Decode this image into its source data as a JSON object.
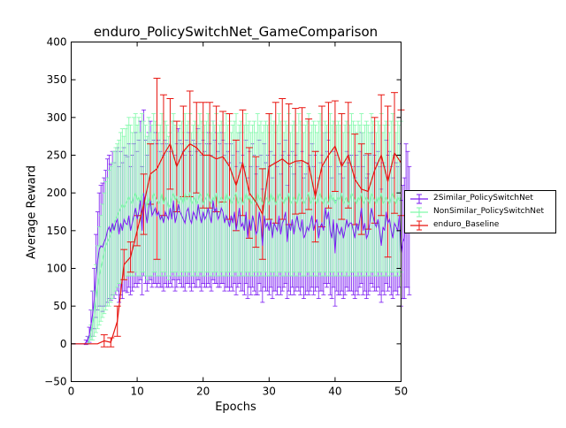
{
  "chart_data": {
    "type": "line",
    "title": "enduro_PolicySwitchNet_GameComparison",
    "xlabel": "Epochs",
    "ylabel": "Average Reward",
    "xlim": [
      0,
      50
    ],
    "ylim": [
      -50,
      400
    ],
    "xticks": [
      "0",
      "10",
      "20",
      "30",
      "40",
      "50"
    ],
    "yticks": [
      "−50",
      "0",
      "50",
      "100",
      "150",
      "200",
      "250",
      "300",
      "350",
      "400"
    ],
    "legend_position": "right, outside axes",
    "grid": false,
    "error_bars": true,
    "series": [
      {
        "name": "2Similar_PolicySwitchNet",
        "color": "#7a19f2",
        "x_start": 0,
        "x_step": 0.25,
        "values": [
          0,
          0,
          0,
          0,
          0,
          0,
          0,
          0,
          0,
          2,
          5,
          12,
          25,
          40,
          60,
          90,
          110,
          125,
          130,
          128,
          135,
          140,
          150,
          155,
          148,
          160,
          150,
          160,
          165,
          145,
          160,
          150,
          165,
          160,
          158,
          170,
          150,
          160,
          170,
          180,
          165,
          175,
          190,
          150,
          200,
          175,
          160,
          180,
          190,
          170,
          175,
          180,
          170,
          175,
          165,
          170,
          160,
          175,
          170,
          165,
          180,
          165,
          190,
          160,
          170,
          185,
          175,
          170,
          165,
          160,
          175,
          180,
          165,
          160,
          175,
          170,
          165,
          185,
          170,
          160,
          175,
          165,
          170,
          180,
          170,
          160,
          190,
          175,
          180,
          165,
          170,
          180,
          175,
          160,
          170,
          165,
          155,
          170,
          160,
          175,
          150,
          165,
          180,
          155,
          160,
          150,
          175,
          140,
          165,
          150,
          170,
          160,
          145,
          150,
          175,
          160,
          130,
          170,
          155,
          160,
          150,
          165,
          140,
          160,
          155,
          150,
          170,
          145,
          160,
          165,
          175,
          135,
          160,
          150,
          165,
          145,
          160,
          170,
          155,
          150,
          165,
          140,
          145,
          155,
          150,
          160,
          170,
          150,
          160,
          165,
          140,
          155,
          160,
          150,
          180,
          165,
          175,
          150,
          140,
          165,
          120,
          160,
          150,
          145,
          155,
          140,
          150,
          165,
          155,
          160,
          160,
          150,
          140,
          160,
          150,
          165,
          180,
          150,
          160,
          140,
          145,
          160,
          180,
          170,
          160,
          155,
          165,
          150,
          130,
          155,
          150,
          175,
          160,
          165,
          150,
          140,
          160,
          155,
          150,
          170,
          120,
          135,
          140,
          170,
          165,
          150
        ],
        "error": [
          0,
          0,
          0,
          0,
          0,
          0,
          0,
          0,
          0,
          3,
          5,
          10,
          20,
          30,
          40,
          55,
          65,
          75,
          80,
          85,
          85,
          90,
          95,
          95,
          90,
          95,
          90,
          95,
          95,
          90,
          95,
          90,
          95,
          90,
          90,
          95,
          85,
          90,
          95,
          100,
          90,
          95,
          105,
          85,
          110,
          95,
          90,
          100,
          105,
          95,
          95,
          100,
          95,
          95,
          90,
          95,
          90,
          95,
          95,
          90,
          100,
          90,
          105,
          90,
          95,
          100,
          95,
          95,
          90,
          90,
          95,
          100,
          90,
          90,
          95,
          95,
          90,
          100,
          95,
          90,
          95,
          90,
          95,
          100,
          95,
          90,
          105,
          95,
          100,
          90,
          95,
          100,
          95,
          90,
          95,
          90,
          85,
          95,
          90,
          95,
          85,
          90,
          100,
          85,
          90,
          85,
          95,
          80,
          90,
          85,
          95,
          90,
          80,
          85,
          95,
          90,
          75,
          95,
          85,
          90,
          85,
          90,
          80,
          90,
          85,
          85,
          95,
          80,
          90,
          90,
          95,
          75,
          90,
          85,
          90,
          80,
          90,
          95,
          85,
          85,
          90,
          80,
          80,
          85,
          85,
          90,
          95,
          85,
          90,
          90,
          80,
          85,
          90,
          85,
          100,
          90,
          95,
          85,
          80,
          90,
          70,
          90,
          85,
          80,
          85,
          80,
          85,
          90,
          85,
          90,
          90,
          85,
          80,
          90,
          85,
          90,
          100,
          85,
          90,
          80,
          80,
          90,
          100,
          95,
          90,
          85,
          90,
          85,
          75,
          85,
          85,
          95,
          90,
          90,
          85,
          80,
          90,
          85,
          85,
          95,
          70,
          75,
          80,
          95,
          90,
          85
        ]
      },
      {
        "name": "NonSimilar_PolicySwitchNet",
        "color": "#7ff9a9",
        "x_start": 0,
        "x_step": 0.25,
        "values": [
          0,
          0,
          0,
          0,
          0,
          0,
          0,
          0,
          0,
          0,
          0,
          5,
          15,
          25,
          40,
          60,
          75,
          90,
          100,
          110,
          120,
          130,
          135,
          140,
          145,
          150,
          160,
          165,
          170,
          175,
          180,
          185,
          180,
          185,
          190,
          195,
          190,
          185,
          195,
          200,
          190,
          195,
          185,
          200,
          195,
          190,
          180,
          195,
          185,
          190,
          200,
          195,
          190,
          185,
          190,
          200,
          185,
          195,
          190,
          180,
          185,
          195,
          200,
          190,
          195,
          185,
          190,
          195,
          185,
          200,
          190,
          195,
          200,
          185,
          190,
          195,
          185,
          190,
          200,
          195,
          185,
          190,
          195,
          200,
          190,
          185,
          195,
          190,
          200,
          185,
          190,
          195,
          190,
          185,
          200,
          190,
          195,
          185,
          190,
          195,
          200,
          185,
          190,
          195,
          185,
          190,
          200,
          190,
          195,
          185,
          190,
          195,
          185,
          200,
          190,
          195,
          185,
          190,
          195,
          190,
          185,
          200,
          190,
          195,
          185,
          190,
          200,
          195,
          190,
          185,
          195,
          190,
          200,
          185,
          190,
          195,
          190,
          185,
          200,
          195,
          190,
          185,
          190,
          195,
          200,
          185,
          190,
          195,
          190,
          185,
          195,
          200,
          190,
          185,
          195,
          190,
          185,
          200,
          190,
          195,
          185,
          190,
          195,
          190,
          200,
          185,
          190,
          195,
          185,
          190,
          200,
          195,
          190,
          185,
          195,
          190,
          200,
          185,
          190,
          195,
          190,
          185,
          200,
          195,
          190,
          185,
          195,
          190,
          200,
          185,
          190,
          195,
          190,
          185,
          195,
          200,
          190,
          185,
          195,
          190,
          195
        ],
        "error": [
          0,
          0,
          0,
          0,
          0,
          0,
          0,
          0,
          0,
          0,
          0,
          5,
          10,
          20,
          30,
          45,
          55,
          65,
          70,
          75,
          80,
          85,
          85,
          90,
          90,
          90,
          95,
          95,
          95,
          95,
          100,
          100,
          95,
          100,
          100,
          105,
          100,
          95,
          105,
          105,
          100,
          105,
          95,
          105,
          100,
          100,
          95,
          105,
          95,
          100,
          105,
          100,
          100,
          95,
          100,
          105,
          95,
          100,
          100,
          95,
          95,
          100,
          105,
          100,
          100,
          95,
          100,
          100,
          95,
          105,
          100,
          100,
          105,
          95,
          100,
          100,
          95,
          100,
          105,
          100,
          95,
          100,
          100,
          105,
          100,
          95,
          100,
          100,
          105,
          95,
          100,
          100,
          100,
          95,
          105,
          100,
          100,
          95,
          100,
          100,
          105,
          95,
          100,
          100,
          95,
          100,
          105,
          100,
          100,
          95,
          100,
          100,
          95,
          105,
          100,
          100,
          95,
          100,
          100,
          100,
          95,
          105,
          100,
          100,
          95,
          100,
          105,
          100,
          100,
          95,
          100,
          100,
          105,
          95,
          100,
          100,
          100,
          95,
          105,
          100,
          100,
          95,
          100,
          100,
          105,
          95,
          100,
          100,
          100,
          95,
          100,
          105,
          100,
          95,
          100,
          100,
          95,
          105,
          100,
          100,
          95,
          100,
          100,
          100,
          105,
          95,
          100,
          100,
          95,
          100,
          105,
          100,
          100,
          95,
          100,
          100,
          105,
          95,
          100,
          100,
          100,
          95,
          105,
          100,
          100,
          95,
          100,
          100,
          105,
          95,
          100,
          100,
          100,
          95,
          100,
          105,
          100,
          95,
          100,
          100,
          100
        ]
      },
      {
        "name": "enduro_Baseline",
        "color": "#e8140f",
        "x": [
          0,
          1,
          2,
          3,
          4,
          5,
          6,
          7,
          8,
          9,
          10,
          11,
          12,
          13,
          14,
          15,
          16,
          17,
          18,
          19,
          20,
          21,
          22,
          23,
          24,
          25,
          26,
          27,
          28,
          29,
          30,
          31,
          32,
          33,
          34,
          35,
          36,
          37,
          38,
          39,
          40,
          41,
          42,
          43,
          44,
          45,
          46,
          47,
          48,
          49,
          50
        ],
        "values": [
          0,
          0,
          0,
          0,
          0,
          4,
          2,
          30,
          105,
          115,
          150,
          185,
          225,
          232,
          250,
          265,
          235,
          255,
          265,
          260,
          250,
          250,
          245,
          248,
          235,
          210,
          240,
          200,
          188,
          172,
          235,
          240,
          245,
          238,
          242,
          243,
          238,
          195,
          235,
          250,
          262,
          235,
          250,
          218,
          205,
          202,
          230,
          250,
          215,
          253,
          240
        ],
        "error": [
          0,
          0,
          0,
          0,
          0,
          8,
          6,
          20,
          20,
          20,
          20,
          40,
          40,
          120,
          80,
          60,
          60,
          60,
          70,
          60,
          70,
          70,
          70,
          60,
          70,
          60,
          70,
          60,
          60,
          60,
          70,
          80,
          80,
          80,
          70,
          70,
          60,
          60,
          80,
          70,
          60,
          70,
          70,
          60,
          60,
          50,
          70,
          80,
          100,
          80,
          70
        ]
      }
    ]
  }
}
